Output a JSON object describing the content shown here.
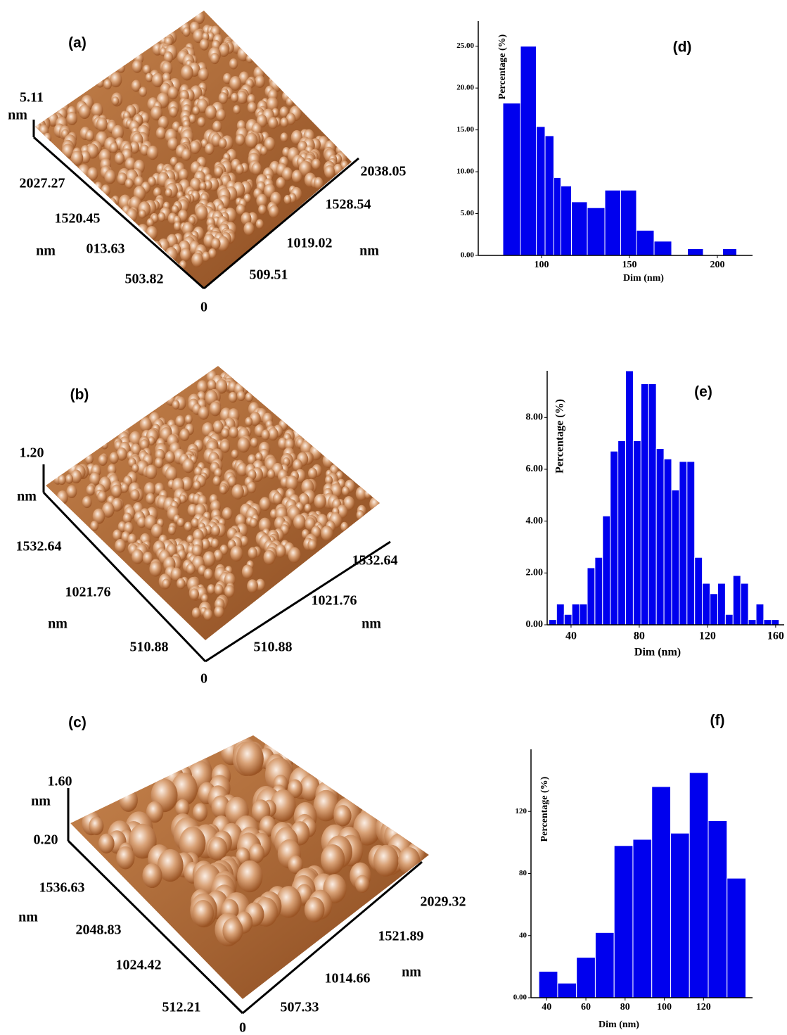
{
  "afm_panels": [
    {
      "label": "(a)",
      "texts": [
        "5.11",
        "nm",
        "2027.27",
        "1520.45",
        "nm",
        "013.63",
        "503.82",
        "0",
        "509.51",
        "1019.02",
        "nm",
        "1528.54",
        "2038.05"
      ]
    },
    {
      "label": "(b)",
      "texts": [
        "1.20",
        "nm",
        "1532.64",
        "1021.76",
        "nm",
        "510.88",
        "0",
        "510.88",
        "1021.76",
        "nm",
        "1532.64"
      ]
    },
    {
      "label": "(c)",
      "texts": [
        "1.60",
        "nm",
        "0.20",
        "1536.63",
        "nm",
        "2048.83",
        "1024.42",
        "512.21",
        "0",
        "507.33",
        "1014.66",
        "nm",
        "1521.89",
        "2029.32"
      ]
    }
  ],
  "chart_data": [
    {
      "type": "histogram",
      "label": "(d)",
      "xlabel": "Dim (nm)",
      "ylabel": "Percentage (%)",
      "color": "#0000ee",
      "bins": [
        78,
        88,
        97,
        102,
        107,
        111,
        117,
        126,
        136,
        145,
        154,
        164,
        174,
        183,
        192,
        203,
        211
      ],
      "values": [
        18.2,
        25,
        15.4,
        14.3,
        9.3,
        8.3,
        6.4,
        5.7,
        7.8,
        7.8,
        3.0,
        1.7,
        0,
        0.8,
        0,
        0.8
      ],
      "xlim": [
        64,
        220
      ],
      "ylim": [
        0,
        28
      ],
      "xticks": [
        100,
        150,
        200
      ],
      "yticks": [
        {
          "value": 0,
          "label": "0.00"
        },
        {
          "value": 5,
          "label": "5.00"
        },
        {
          "value": 10,
          "label": "10.00"
        },
        {
          "value": 15,
          "label": "15.00"
        },
        {
          "value": 20,
          "label": "20.00"
        },
        {
          "value": 25,
          "label": "25.00"
        }
      ]
    },
    {
      "type": "histogram",
      "label": "(e)",
      "xlabel": "Dim (nm)",
      "ylabel": "Percentage (%)",
      "color": "#0000ee",
      "bins": [
        27,
        31.5,
        36,
        40.5,
        45,
        49.5,
        54,
        58.5,
        63,
        67.5,
        72,
        76.5,
        81,
        85.5,
        90,
        94.5,
        99,
        103.5,
        108,
        112.5,
        117,
        121.5,
        126,
        130.5,
        135,
        139.5,
        144,
        148.5,
        153,
        157.5,
        162
      ],
      "values": [
        0.2,
        0.8,
        0.4,
        0.8,
        0.8,
        2.2,
        2.6,
        4.2,
        6.7,
        7.1,
        9.8,
        7.1,
        9.3,
        9.3,
        6.8,
        6.4,
        5.2,
        6.3,
        6.3,
        2.6,
        1.6,
        1.2,
        1.6,
        0.4,
        1.9,
        1.6,
        0.2,
        0.8,
        0.2,
        0.2
      ],
      "xlim": [
        26,
        165
      ],
      "ylim": [
        0,
        9.8
      ],
      "xticks": [
        40,
        80,
        120,
        160
      ],
      "yticks": [
        {
          "value": 0,
          "label": "0.00"
        },
        {
          "value": 2,
          "label": "2.00"
        },
        {
          "value": 4,
          "label": "4.00"
        },
        {
          "value": 6,
          "label": "6.00"
        },
        {
          "value": 8,
          "label": "8.00"
        }
      ]
    },
    {
      "type": "histogram",
      "label": "(f)",
      "xlabel": "Dim (nm)",
      "ylabel": "Percentage (%)",
      "color": "#0000ee",
      "bins": [
        36,
        45.6,
        55.2,
        64.8,
        74.4,
        84,
        93.6,
        103.2,
        112.8,
        122.4,
        132,
        141.6
      ],
      "values": [
        17,
        9.4,
        26,
        42,
        98,
        102,
        136,
        106,
        145,
        114,
        77
      ],
      "xlim": [
        32,
        145
      ],
      "ylim": [
        0,
        160
      ],
      "xticks": [
        40,
        60,
        80,
        100,
        120
      ],
      "yticks": [
        {
          "value": 0,
          "label": "0.00"
        },
        40,
        80,
        120
      ]
    }
  ]
}
